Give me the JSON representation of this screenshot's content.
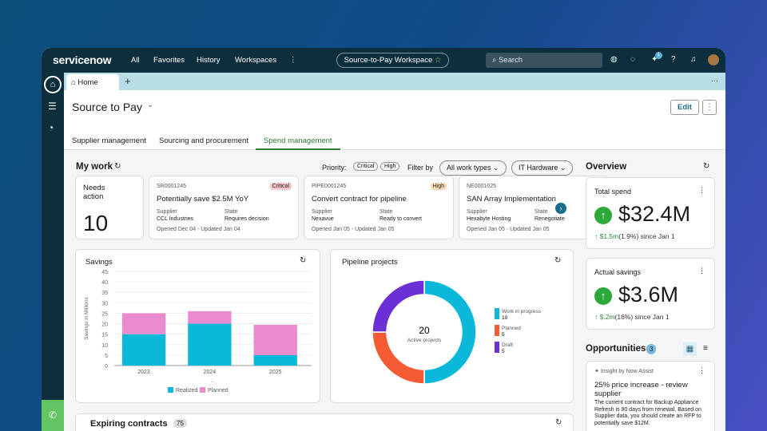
{
  "nav": {
    "logo": "servicenow",
    "items": [
      "All",
      "Favorites",
      "History",
      "Workspaces"
    ],
    "workspace": "Source-to-Pay Workspace",
    "search_placeholder": "Search",
    "notification_count": "1"
  },
  "tabs": {
    "home": "Home"
  },
  "page": {
    "title": "Source to Pay",
    "edit": "Edit",
    "subtabs": [
      "Supplier management",
      "Sourcing and procurement",
      "Spend management"
    ],
    "active_subtab": 2
  },
  "mywork": {
    "title": "My work",
    "priority_label": "Priority:",
    "priorities": [
      "Critical",
      "High"
    ],
    "filter_label": "Filter by",
    "filter_value": "All work types",
    "category_value": "IT Hardware",
    "needs_action": {
      "label": "Needs action",
      "count": "10"
    },
    "cards": [
      {
        "id": "SR0001245",
        "badge": "Critical",
        "title": "Potentially save $2.5M YoY",
        "supplier_label": "Supplier",
        "supplier": "CCL Industries",
        "state_label": "State",
        "state": "Requires decision",
        "dates": "Opened Dec 04 - Updated Jan 04"
      },
      {
        "id": "PIPE0001245",
        "badge": "High",
        "title": "Convert contract for pipeline",
        "supplier_label": "Supplier",
        "supplier": "Nexavue",
        "state_label": "State",
        "state": "Ready to convert",
        "dates": "Opened Jan 05 - Updated Jan 05"
      },
      {
        "id": "NE0001025",
        "badge": "",
        "title": "SAN Array Implementation",
        "supplier_label": "Supplier",
        "supplier": "Hexabyte Hosting",
        "state_label": "State",
        "state": "Renegotiate",
        "dates": "Opened Jan 05 - Updated Jan 05"
      }
    ]
  },
  "savings": {
    "title": "Savings"
  },
  "chart_data": [
    {
      "type": "bar",
      "stacked": true,
      "title": "Savings",
      "ylabel": "Savings in Millions",
      "xlabel": "--",
      "categories": [
        "2023",
        "2024",
        "2025"
      ],
      "ylim": [
        0,
        45
      ],
      "yticks": [
        0,
        5,
        10,
        15,
        20,
        25,
        30,
        35,
        40,
        45
      ],
      "grid": true,
      "legend": "bottom",
      "series": [
        {
          "name": "Realized",
          "color": "#0bb8d9",
          "values": [
            15,
            20,
            5
          ]
        },
        {
          "name": "Planned",
          "color": "#ea8bd0",
          "values": [
            10,
            6,
            14.5
          ]
        }
      ]
    },
    {
      "type": "pie",
      "donut": true,
      "title": "Pipeline projects",
      "center_value": "20",
      "center_label": "Active projects",
      "legend": "right",
      "slices": [
        {
          "name": "Work in progress",
          "value": 10,
          "color": "#0bb8d9"
        },
        {
          "name": "Planned",
          "value": 5,
          "color": "#f45b33"
        },
        {
          "name": "Draft",
          "value": 5,
          "color": "#6b2fd6"
        }
      ]
    }
  ],
  "overview": {
    "title": "Overview",
    "total": {
      "label": "Total spend",
      "value": "$32.4M",
      "delta": "↑ $1.5m",
      "pct": "(1.9%)",
      "since": "since Jan 1"
    },
    "actual": {
      "label": "Actual savings",
      "value": "$3.6M",
      "delta": "↑ $.2m",
      "pct": "(16%)",
      "since": "since Jan 1"
    }
  },
  "opportunities": {
    "title": "Opportunities",
    "count": "3",
    "insight": "Insight by Now Assist",
    "headline": "25% price increase - review supplier",
    "body": "The current contract for Backup Appliance Refresh is 90 days from renewal. Based on Supplier data, you should create an RFP to potentially save $12M."
  },
  "expiring": {
    "title": "Expiring contracts",
    "count": "75"
  }
}
